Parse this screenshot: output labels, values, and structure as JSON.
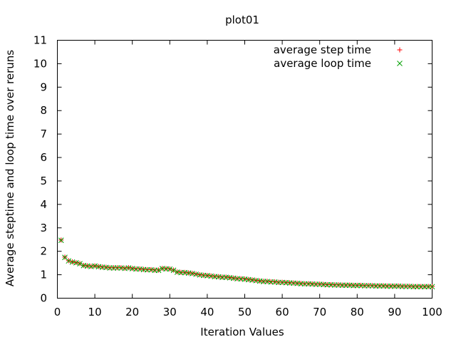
{
  "chart_data": {
    "type": "scatter",
    "title": "plot01",
    "xlabel": "Iteration Values",
    "ylabel": "Average steptime and loop time over reruns",
    "xlim": [
      0,
      100
    ],
    "ylim": [
      0,
      11
    ],
    "xticks": [
      0,
      10,
      20,
      30,
      40,
      50,
      60,
      70,
      80,
      90,
      100
    ],
    "yticks": [
      0,
      1,
      2,
      3,
      4,
      5,
      6,
      7,
      8,
      9,
      10,
      11
    ],
    "grid": false,
    "legend_position": "top-right",
    "x": [
      1,
      2,
      3,
      4,
      5,
      6,
      7,
      8,
      9,
      10,
      11,
      12,
      13,
      14,
      15,
      16,
      17,
      18,
      19,
      20,
      21,
      22,
      23,
      24,
      25,
      26,
      27,
      28,
      29,
      30,
      31,
      32,
      33,
      34,
      35,
      36,
      37,
      38,
      39,
      40,
      41,
      42,
      43,
      44,
      45,
      46,
      47,
      48,
      49,
      50,
      51,
      52,
      53,
      54,
      55,
      56,
      57,
      58,
      59,
      60,
      61,
      62,
      63,
      64,
      65,
      66,
      67,
      68,
      69,
      70,
      71,
      72,
      73,
      74,
      75,
      76,
      77,
      78,
      79,
      80,
      81,
      82,
      83,
      84,
      85,
      86,
      87,
      88,
      89,
      90,
      91,
      92,
      93,
      94,
      95,
      96,
      97,
      98,
      99,
      100
    ],
    "series": [
      {
        "name": "average step time",
        "color": "#ff0000",
        "marker": "plus",
        "values": [
          2.48,
          1.75,
          1.6,
          1.55,
          1.52,
          1.48,
          1.4,
          1.38,
          1.36,
          1.38,
          1.35,
          1.33,
          1.32,
          1.3,
          1.3,
          1.3,
          1.3,
          1.28,
          1.3,
          1.27,
          1.25,
          1.25,
          1.23,
          1.22,
          1.22,
          1.2,
          1.2,
          1.27,
          1.26,
          1.25,
          1.2,
          1.12,
          1.1,
          1.1,
          1.08,
          1.06,
          1.03,
          1.0,
          0.98,
          0.97,
          0.95,
          0.93,
          0.92,
          0.9,
          0.9,
          0.88,
          0.86,
          0.84,
          0.83,
          0.82,
          0.8,
          0.78,
          0.76,
          0.74,
          0.72,
          0.72,
          0.7,
          0.7,
          0.68,
          0.68,
          0.67,
          0.66,
          0.65,
          0.64,
          0.63,
          0.62,
          0.62,
          0.61,
          0.6,
          0.6,
          0.59,
          0.58,
          0.58,
          0.57,
          0.57,
          0.56,
          0.56,
          0.56,
          0.55,
          0.55,
          0.55,
          0.54,
          0.54,
          0.54,
          0.53,
          0.53,
          0.53,
          0.52,
          0.52,
          0.52,
          0.52,
          0.51,
          0.51,
          0.51,
          0.5,
          0.5,
          0.5,
          0.5,
          0.5,
          0.5
        ]
      },
      {
        "name": "average loop time",
        "color": "#00a000",
        "marker": "cross",
        "values": [
          2.47,
          1.74,
          1.59,
          1.54,
          1.51,
          1.47,
          1.39,
          1.37,
          1.35,
          1.37,
          1.34,
          1.32,
          1.31,
          1.29,
          1.29,
          1.29,
          1.29,
          1.27,
          1.29,
          1.26,
          1.24,
          1.24,
          1.22,
          1.21,
          1.21,
          1.19,
          1.19,
          1.26,
          1.25,
          1.24,
          1.19,
          1.11,
          1.09,
          1.09,
          1.07,
          1.05,
          1.02,
          0.99,
          0.97,
          0.96,
          0.94,
          0.92,
          0.91,
          0.89,
          0.89,
          0.87,
          0.85,
          0.83,
          0.82,
          0.81,
          0.79,
          0.77,
          0.75,
          0.73,
          0.71,
          0.71,
          0.69,
          0.69,
          0.67,
          0.67,
          0.66,
          0.65,
          0.64,
          0.63,
          0.62,
          0.61,
          0.61,
          0.6,
          0.59,
          0.59,
          0.58,
          0.57,
          0.57,
          0.56,
          0.56,
          0.55,
          0.55,
          0.55,
          0.54,
          0.54,
          0.54,
          0.53,
          0.53,
          0.53,
          0.52,
          0.52,
          0.52,
          0.51,
          0.51,
          0.51,
          0.51,
          0.5,
          0.5,
          0.5,
          0.49,
          0.49,
          0.49,
          0.49,
          0.49,
          0.49
        ]
      }
    ]
  }
}
